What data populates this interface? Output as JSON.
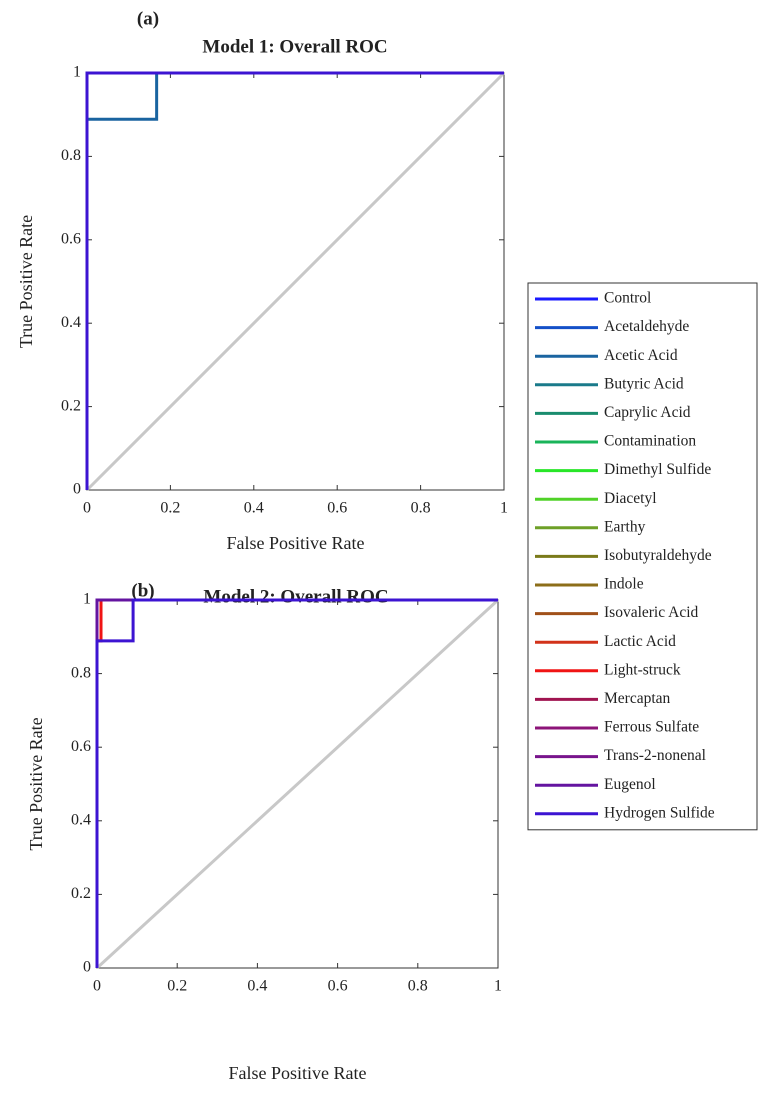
{
  "chart_data": [
    {
      "type": "line",
      "panel_label": "(a)",
      "title": "Model 1: Overall ROC",
      "x_label": "False Positive Rate",
      "y_label": "True Positive Rate",
      "xlim": [
        0,
        1
      ],
      "ylim": [
        0,
        1
      ],
      "xticks": [
        0,
        0.2,
        0.4,
        0.6,
        0.8,
        1
      ],
      "yticks": [
        0,
        0.2,
        0.4,
        0.6,
        0.8,
        1
      ],
      "series": [
        {
          "name": "Control",
          "color": "#1a1aff",
          "x": [
            0,
            0,
            1
          ],
          "values": [
            0,
            1,
            1
          ]
        },
        {
          "name": "Acetaldehyde",
          "color": "#1450c8",
          "x": [
            0,
            0,
            1
          ],
          "values": [
            0,
            1,
            1
          ]
        },
        {
          "name": "Acetic Acid",
          "color": "#1a64a0",
          "x": [
            0,
            0,
            0.167,
            0.167,
            1
          ],
          "values": [
            0,
            0.889,
            0.889,
            1,
            1
          ]
        },
        {
          "name": "Butyric Acid",
          "color": "#1a7a8a",
          "x": [
            0,
            0,
            1
          ],
          "values": [
            0,
            1,
            1
          ]
        },
        {
          "name": "Caprylic Acid",
          "color": "#1a8c6e",
          "x": [
            0,
            0,
            1
          ],
          "values": [
            0,
            1,
            1
          ]
        },
        {
          "name": "Contamination",
          "color": "#1ab45a",
          "x": [
            0,
            0,
            1
          ],
          "values": [
            0,
            1,
            1
          ]
        },
        {
          "name": "Dimethyl Sulfide",
          "color": "#28e628",
          "x": [
            0,
            0,
            1
          ],
          "values": [
            0,
            1,
            1
          ]
        },
        {
          "name": "Diacetyl",
          "color": "#50d228",
          "x": [
            0,
            0,
            1
          ],
          "values": [
            0,
            1,
            1
          ]
        },
        {
          "name": "Earthy",
          "color": "#6ea028",
          "x": [
            0,
            0,
            1
          ],
          "values": [
            0,
            1,
            1
          ]
        },
        {
          "name": "Isobutyraldehyde",
          "color": "#7a7a1a",
          "x": [
            0,
            0,
            1
          ],
          "values": [
            0,
            1,
            1
          ]
        },
        {
          "name": "Indole",
          "color": "#8c6e1a",
          "x": [
            0,
            0,
            1
          ],
          "values": [
            0,
            1,
            1
          ]
        },
        {
          "name": "Isovaleric Acid",
          "color": "#a0501a",
          "x": [
            0,
            0,
            1
          ],
          "values": [
            0,
            1,
            1
          ]
        },
        {
          "name": "Lactic Acid",
          "color": "#d2321a",
          "x": [
            0,
            0,
            1
          ],
          "values": [
            0,
            1,
            1
          ]
        },
        {
          "name": "Light-struck",
          "color": "#f01414",
          "x": [
            0,
            0,
            1
          ],
          "values": [
            0,
            1,
            1
          ]
        },
        {
          "name": "Mercaptan",
          "color": "#a01450",
          "x": [
            0,
            0,
            1
          ],
          "values": [
            0,
            1,
            1
          ]
        },
        {
          "name": "Ferrous Sulfate",
          "color": "#8c1478",
          "x": [
            0,
            0,
            1
          ],
          "values": [
            0,
            1,
            1
          ]
        },
        {
          "name": "Trans-2-nonenal",
          "color": "#78148c",
          "x": [
            0,
            0,
            1
          ],
          "values": [
            0,
            1,
            1
          ]
        },
        {
          "name": "Eugenol",
          "color": "#6414a0",
          "x": [
            0,
            0,
            1
          ],
          "values": [
            0,
            1,
            1
          ]
        },
        {
          "name": "Hydrogen Sulfide",
          "color": "#3c14d2",
          "x": [
            0,
            0,
            1
          ],
          "values": [
            0,
            1,
            1
          ]
        }
      ]
    },
    {
      "type": "line",
      "panel_label": "(b)",
      "title": "Model 2: Overall ROC",
      "x_label": "False Positive Rate",
      "y_label": "True Positive Rate",
      "xlim": [
        0,
        1
      ],
      "ylim": [
        0,
        1
      ],
      "xticks": [
        0,
        0.2,
        0.4,
        0.6,
        0.8,
        1
      ],
      "yticks": [
        0,
        0.2,
        0.4,
        0.6,
        0.8,
        1
      ],
      "series": [
        {
          "color": "#1a1aff",
          "x": [
            0,
            0,
            1
          ],
          "values": [
            0,
            1,
            1
          ]
        },
        {
          "color": "#1450c8",
          "x": [
            0,
            0,
            1
          ],
          "values": [
            0,
            1,
            1
          ]
        },
        {
          "color": "#1a64a0",
          "x": [
            0,
            0,
            1
          ],
          "values": [
            0,
            1,
            1
          ]
        },
        {
          "color": "#1a7a8a",
          "x": [
            0,
            0,
            1
          ],
          "values": [
            0,
            1,
            1
          ]
        },
        {
          "color": "#1a8c6e",
          "x": [
            0,
            0,
            1
          ],
          "values": [
            0,
            1,
            1
          ]
        },
        {
          "color": "#1ab45a",
          "x": [
            0,
            0,
            1
          ],
          "values": [
            0,
            1,
            1
          ]
        },
        {
          "color": "#28e628",
          "x": [
            0,
            0,
            1
          ],
          "values": [
            0,
            1,
            1
          ]
        },
        {
          "color": "#50d228",
          "x": [
            0,
            0,
            1
          ],
          "values": [
            0,
            1,
            1
          ]
        },
        {
          "color": "#6ea028",
          "x": [
            0,
            0,
            1
          ],
          "values": [
            0,
            1,
            1
          ]
        },
        {
          "color": "#7a7a1a",
          "x": [
            0,
            0,
            1
          ],
          "values": [
            0,
            1,
            1
          ]
        },
        {
          "color": "#8c6e1a",
          "x": [
            0,
            0,
            1
          ],
          "values": [
            0,
            1,
            1
          ]
        },
        {
          "color": "#a0501a",
          "x": [
            0,
            0,
            1
          ],
          "values": [
            0,
            1,
            1
          ]
        },
        {
          "color": "#d2321a",
          "x": [
            0,
            0,
            1
          ],
          "values": [
            0,
            1,
            1
          ]
        },
        {
          "color": "#f01414",
          "x": [
            0,
            0,
            0.01,
            0.01,
            1
          ],
          "values": [
            0,
            0.889,
            0.889,
            1,
            1
          ]
        },
        {
          "color": "#a01450",
          "x": [
            0,
            0,
            1
          ],
          "values": [
            0,
            1,
            1
          ]
        },
        {
          "color": "#8c1478",
          "x": [
            0,
            0,
            1
          ],
          "values": [
            0,
            1,
            1
          ]
        },
        {
          "color": "#78148c",
          "x": [
            0,
            0,
            1
          ],
          "values": [
            0,
            1,
            1
          ]
        },
        {
          "color": "#6414a0",
          "x": [
            0,
            0,
            1
          ],
          "values": [
            0,
            1,
            1
          ]
        },
        {
          "color": "#3c14d2",
          "x": [
            0,
            0,
            0.09,
            0.09,
            1
          ],
          "values": [
            0,
            0.889,
            0.889,
            1,
            1
          ]
        }
      ]
    }
  ]
}
